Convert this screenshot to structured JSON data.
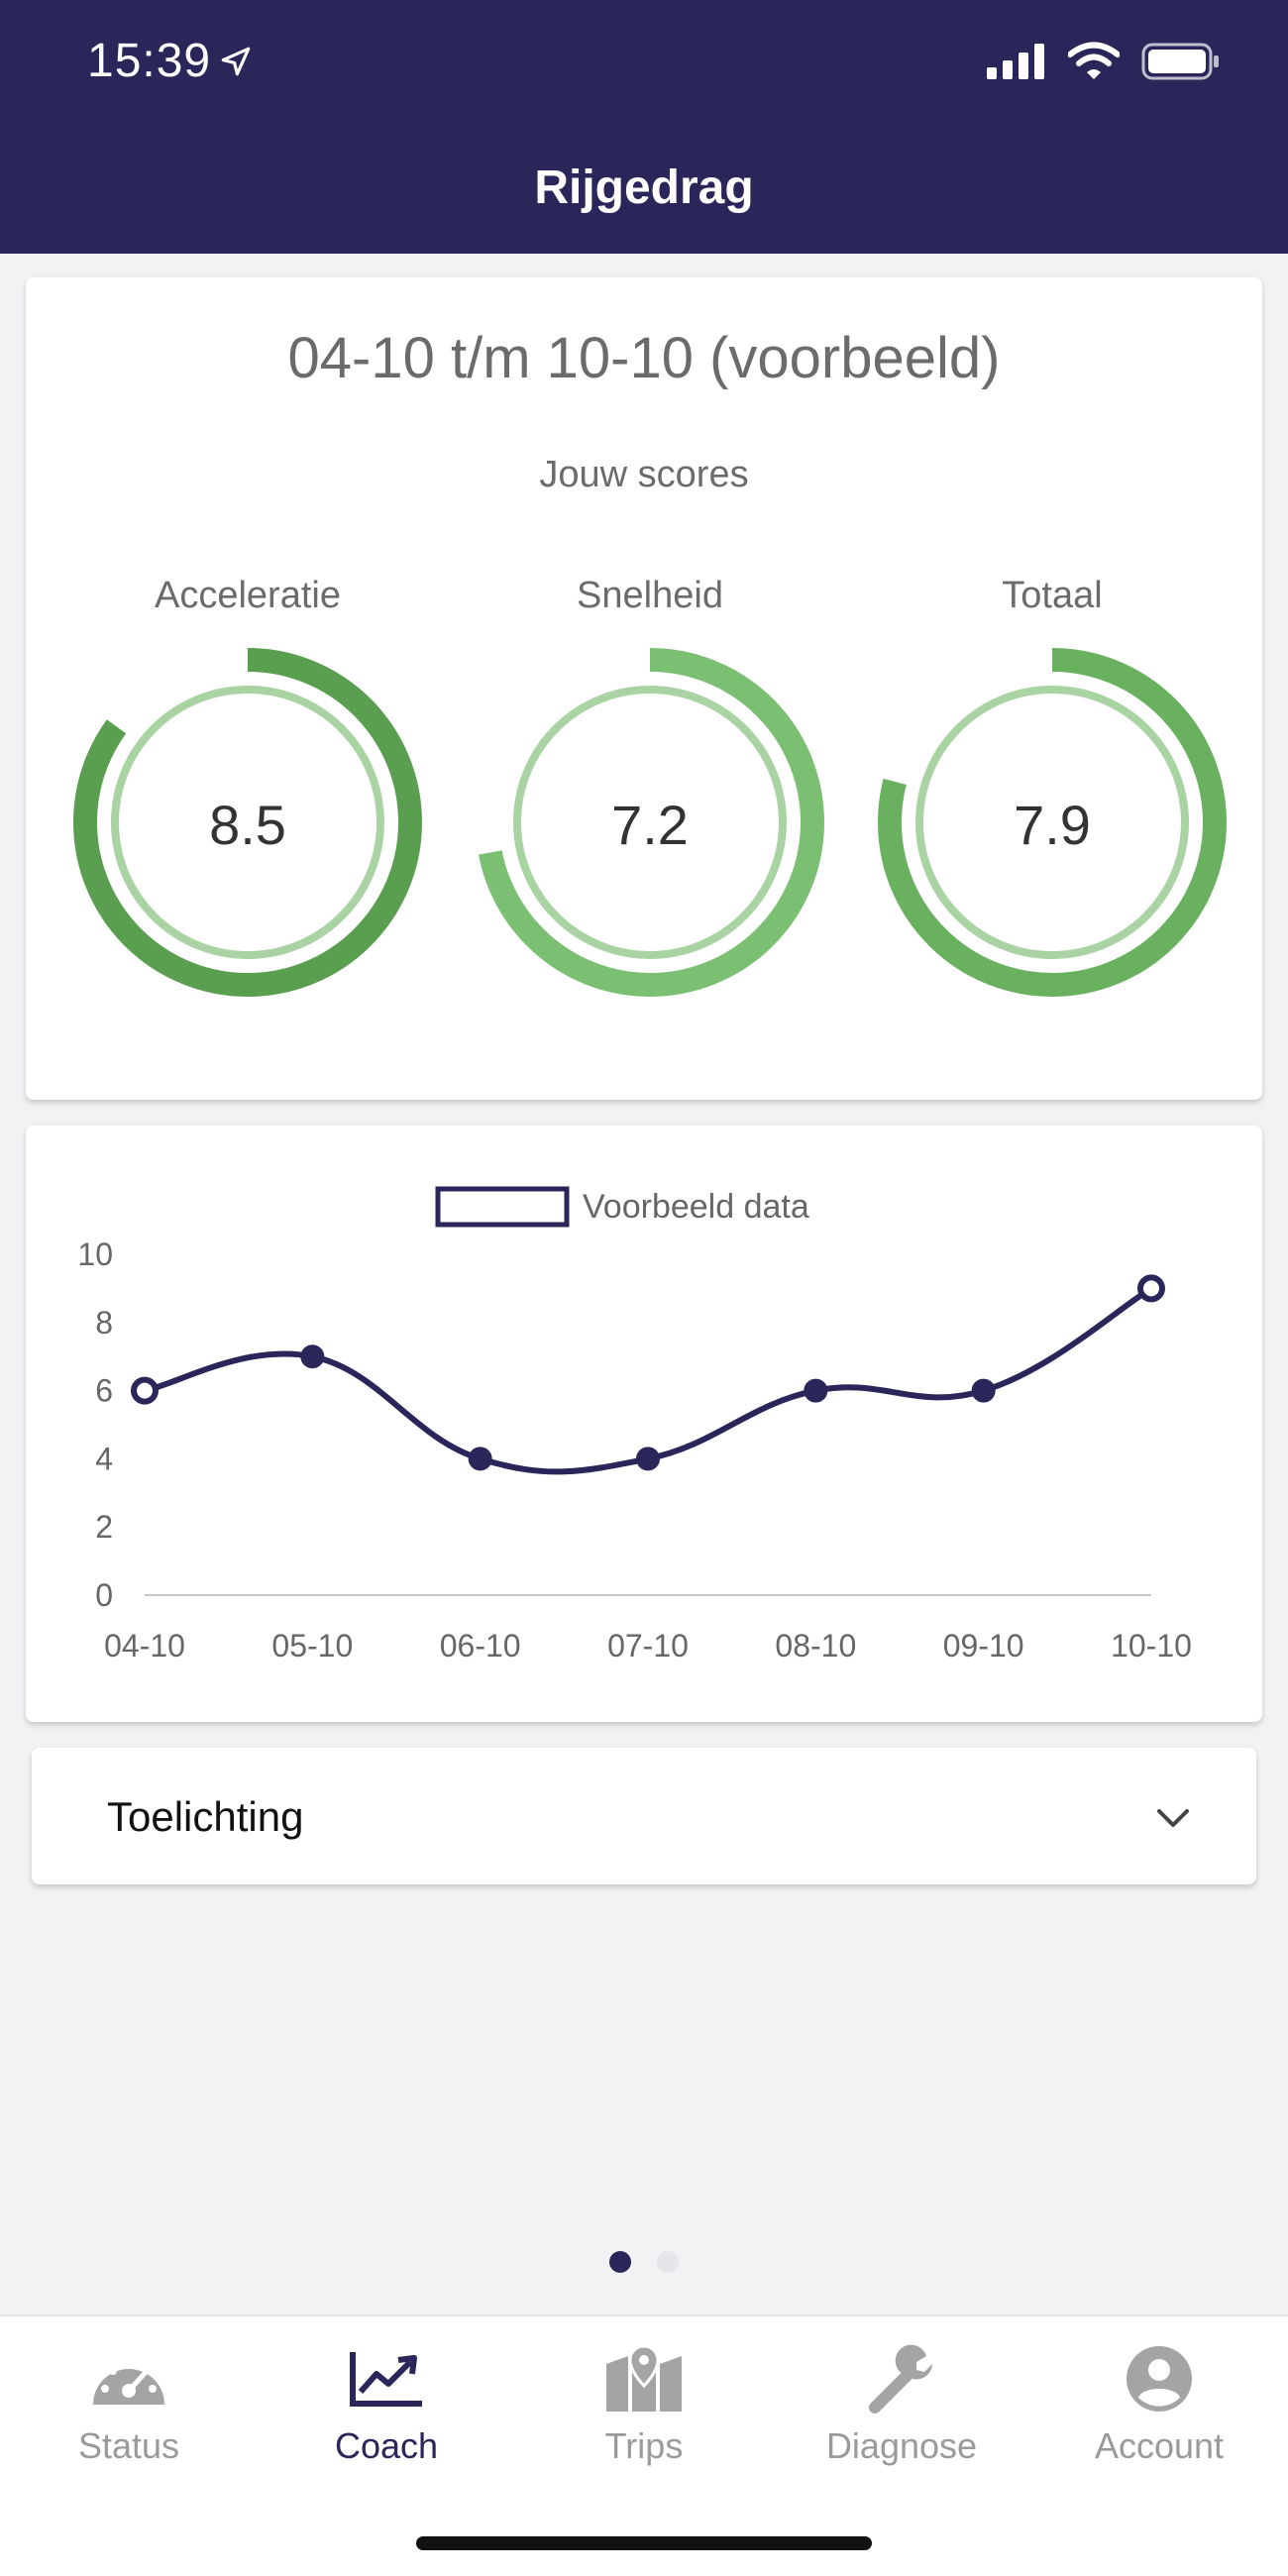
{
  "status_bar": {
    "time": "15:39"
  },
  "header": {
    "title": "Rijgedrag"
  },
  "scores_card": {
    "period": "04-10 t/m 10-10 (voorbeeld)",
    "subtitle": "Jouw scores",
    "scores": [
      {
        "label": "Acceleratie",
        "value": "8.5",
        "fraction": 0.85,
        "color": "#5a9e4f"
      },
      {
        "label": "Snelheid",
        "value": "7.2",
        "fraction": 0.72,
        "color": "#7bbf73"
      },
      {
        "label": "Totaal",
        "value": "7.9",
        "fraction": 0.79,
        "color": "#69b15f"
      }
    ],
    "inner_ring_color": "#a9d3a2"
  },
  "chart_data": {
    "type": "line",
    "legend": "Voorbeeld data",
    "categories": [
      "04-10",
      "05-10",
      "06-10",
      "07-10",
      "08-10",
      "09-10",
      "10-10"
    ],
    "series": [
      {
        "name": "Voorbeeld data",
        "values": [
          6,
          7,
          4,
          4,
          6,
          6,
          9
        ],
        "color": "#2a2659"
      }
    ],
    "y_ticks": [
      "0",
      "2",
      "4",
      "6",
      "8",
      "10"
    ],
    "ylim": [
      0,
      10
    ],
    "legend_position": "top-center",
    "grid": false
  },
  "accordion": {
    "label": "Toelichting"
  },
  "pager": {
    "pages": 2,
    "active": 0
  },
  "nav": {
    "items": [
      {
        "label": "Status",
        "icon": "speedometer-icon",
        "active": false
      },
      {
        "label": "Coach",
        "icon": "trend-chart-icon",
        "active": true
      },
      {
        "label": "Trips",
        "icon": "map-pin-icon",
        "active": false
      },
      {
        "label": "Diagnose",
        "icon": "wrench-icon",
        "active": false
      },
      {
        "label": "Account",
        "icon": "account-icon",
        "active": false
      }
    ],
    "active_color": "#2a2659",
    "inactive_color": "#9a9a9a"
  },
  "colors": {
    "brand": "#2a2659",
    "background": "#f2f2f4"
  }
}
